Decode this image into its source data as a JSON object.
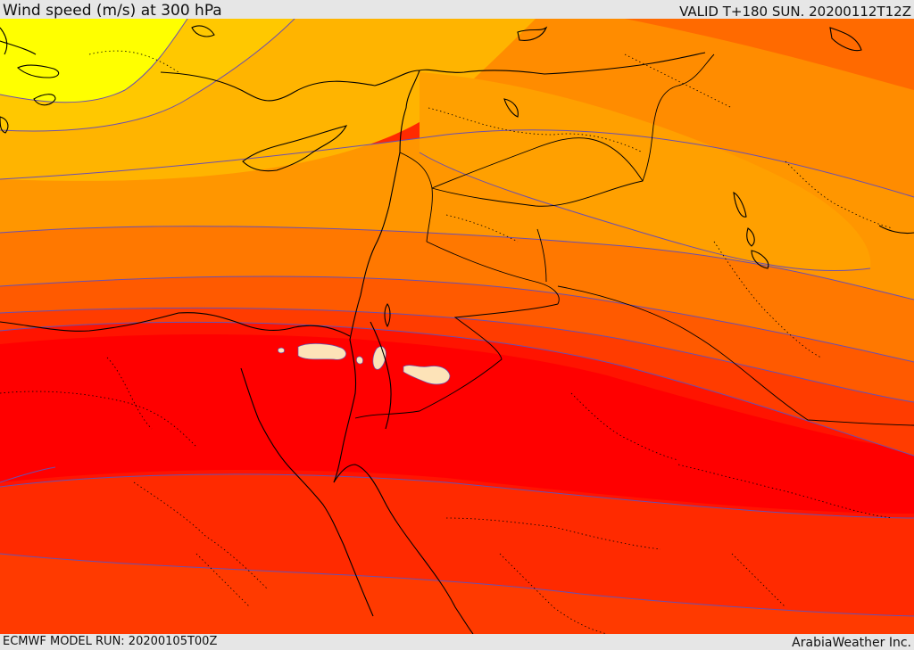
{
  "header": {
    "title": "Wind speed (m/s) at 300 hPa",
    "valid": "VALID T+180 SUN. 20200112T12Z"
  },
  "footer": {
    "model_run": "ECMWF MODEL RUN: 20200105T00Z",
    "credit": "ArabiaWeather Inc."
  },
  "palette": {
    "yellow": "#ffff00",
    "light_orange": "#ffc800",
    "amber": "#ffb400",
    "orange": "#ff9600",
    "dark_orange": "#ff7800",
    "red_orange": "#ff5a00",
    "scarlet": "#ff3c00",
    "red": "#ff1e00",
    "core_red": "#ff0000",
    "jet_max": "#fde3b8",
    "contour_line": "#6a4fb0",
    "coastline": "#000000"
  }
}
